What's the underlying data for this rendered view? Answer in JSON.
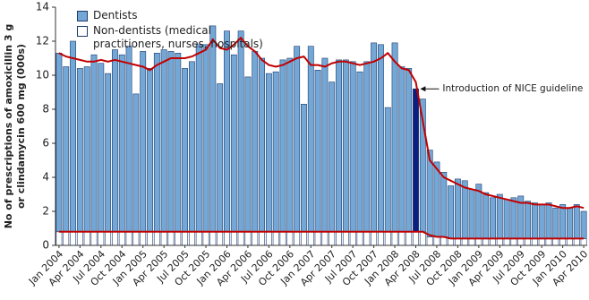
{
  "chart_data": {
    "type": "stacked-bar",
    "ylabel": [
      "No of prescriptions of amoxicillin 3 g",
      "or clindamycin 600 mg (000s)"
    ],
    "categories": [
      "Jan 2004",
      null,
      null,
      "Apr 2004",
      null,
      null,
      "Jul 2004",
      null,
      null,
      "Oct 2004",
      null,
      null,
      "Jan 2005",
      null,
      null,
      "Apr 2005",
      null,
      null,
      "Jul 2005",
      null,
      null,
      "Oct 2005",
      null,
      null,
      "Jan 2006",
      null,
      null,
      "Apr 2006",
      null,
      null,
      "Jul 2006",
      null,
      null,
      "Oct 2006",
      null,
      null,
      "Jan 2007",
      null,
      null,
      "Apr 2007",
      null,
      null,
      "Jul 2007",
      null,
      null,
      "Oct 2007",
      null,
      null,
      "Jan 2008",
      null,
      null,
      "Apr 2008",
      null,
      null,
      "Jul 2008",
      null,
      null,
      "Oct 2008",
      null,
      null,
      "Jan 2009",
      null,
      null,
      "Apr 2009",
      null,
      null,
      "Jul 2009",
      null,
      null,
      "Oct 2009",
      null,
      null,
      "Jan 2010",
      null,
      null,
      "Apr 2010"
    ],
    "series": [
      {
        "name": "Non-dentists (medical practitioners, nurses, hospitals)",
        "color": "#ffffff",
        "values": [
          0.8,
          0.8,
          0.8,
          0.8,
          0.8,
          0.8,
          0.8,
          0.8,
          0.8,
          0.8,
          0.8,
          0.8,
          0.8,
          0.8,
          0.8,
          0.8,
          0.8,
          0.8,
          0.8,
          0.8,
          0.8,
          0.8,
          0.8,
          0.8,
          0.8,
          0.8,
          0.8,
          0.8,
          0.8,
          0.8,
          0.8,
          0.8,
          0.8,
          0.8,
          0.8,
          0.8,
          0.8,
          0.8,
          0.8,
          0.8,
          0.8,
          0.8,
          0.8,
          0.8,
          0.8,
          0.8,
          0.8,
          0.8,
          0.8,
          0.8,
          0.8,
          0.8,
          0.8,
          0.5,
          0.5,
          0.5,
          0.4,
          0.4,
          0.4,
          0.4,
          0.4,
          0.4,
          0.4,
          0.4,
          0.4,
          0.4,
          0.4,
          0.4,
          0.4,
          0.4,
          0.4,
          0.4,
          0.4,
          0.4,
          0.4,
          0.4
        ]
      },
      {
        "name": "Dentists",
        "color": "#73a7d6",
        "values": [
          10.5,
          9.7,
          11.2,
          9.6,
          9.7,
          10.4,
          9.9,
          9.3,
          10.7,
          10.4,
          10.9,
          8.1,
          10.6,
          9.6,
          10.5,
          10.7,
          10.6,
          10.5,
          9.6,
          10.0,
          11.0,
          11.0,
          12.1,
          8.7,
          11.8,
          10.4,
          11.8,
          9.1,
          10.6,
          10.2,
          9.3,
          9.4,
          10.1,
          10.2,
          10.9,
          7.5,
          10.9,
          9.5,
          10.2,
          8.8,
          10.1,
          10.1,
          10.0,
          9.4,
          10.0,
          11.1,
          11.0,
          7.3,
          11.1,
          9.7,
          9.6,
          8.4,
          7.8,
          5.1,
          4.4,
          3.8,
          3.1,
          3.5,
          3.4,
          2.9,
          3.2,
          2.7,
          2.4,
          2.6,
          2.3,
          2.4,
          2.5,
          2.2,
          2.1,
          2.0,
          2.1,
          1.8,
          2.0,
          1.8,
          2.0,
          1.6
        ]
      }
    ],
    "trend_lines": [
      {
        "color": "#c00000",
        "values": [
          11.3,
          11.1,
          11.0,
          10.9,
          10.8,
          10.8,
          10.9,
          10.8,
          10.9,
          10.8,
          10.7,
          10.6,
          10.5,
          10.3,
          10.6,
          10.8,
          11.0,
          11.0,
          11.0,
          11.1,
          11.3,
          11.5,
          12.1,
          11.6,
          11.5,
          11.8,
          12.2,
          11.7,
          11.4,
          10.9,
          10.6,
          10.5,
          10.6,
          10.8,
          11.0,
          11.1,
          10.6,
          10.6,
          10.5,
          10.7,
          10.8,
          10.8,
          10.7,
          10.6,
          10.7,
          10.8,
          11.0,
          11.3,
          10.8,
          10.4,
          10.3,
          9.6,
          7.3,
          5.0,
          4.5,
          4.0,
          3.8,
          3.6,
          3.4,
          3.3,
          3.2,
          3.0,
          2.9,
          2.8,
          2.7,
          2.6,
          2.5,
          2.5,
          2.4,
          2.4,
          2.4,
          2.3,
          2.2,
          2.2,
          2.3,
          2.2
        ]
      },
      {
        "color": "#c00000",
        "values": [
          0.8,
          0.8,
          0.8,
          0.8,
          0.8,
          0.8,
          0.8,
          0.8,
          0.8,
          0.8,
          0.8,
          0.8,
          0.8,
          0.8,
          0.8,
          0.8,
          0.8,
          0.8,
          0.8,
          0.8,
          0.8,
          0.8,
          0.8,
          0.8,
          0.8,
          0.8,
          0.8,
          0.8,
          0.8,
          0.8,
          0.8,
          0.8,
          0.8,
          0.8,
          0.8,
          0.8,
          0.8,
          0.8,
          0.8,
          0.8,
          0.8,
          0.8,
          0.8,
          0.8,
          0.8,
          0.8,
          0.8,
          0.8,
          0.8,
          0.8,
          0.8,
          0.8,
          0.8,
          0.6,
          0.5,
          0.5,
          0.4,
          0.4,
          0.4,
          0.4,
          0.4,
          0.4,
          0.4,
          0.4,
          0.4,
          0.4,
          0.4,
          0.4,
          0.4,
          0.4,
          0.4,
          0.4,
          0.4,
          0.4,
          0.4,
          0.4
        ]
      }
    ],
    "highlight": {
      "index": 51,
      "color": "#0a1f80",
      "label": "Introduction of NICE guideline"
    },
    "ylim": [
      0,
      14
    ],
    "yticks": [
      0,
      2,
      4,
      6,
      8,
      10,
      12,
      14
    ],
    "legend": "top-left"
  }
}
